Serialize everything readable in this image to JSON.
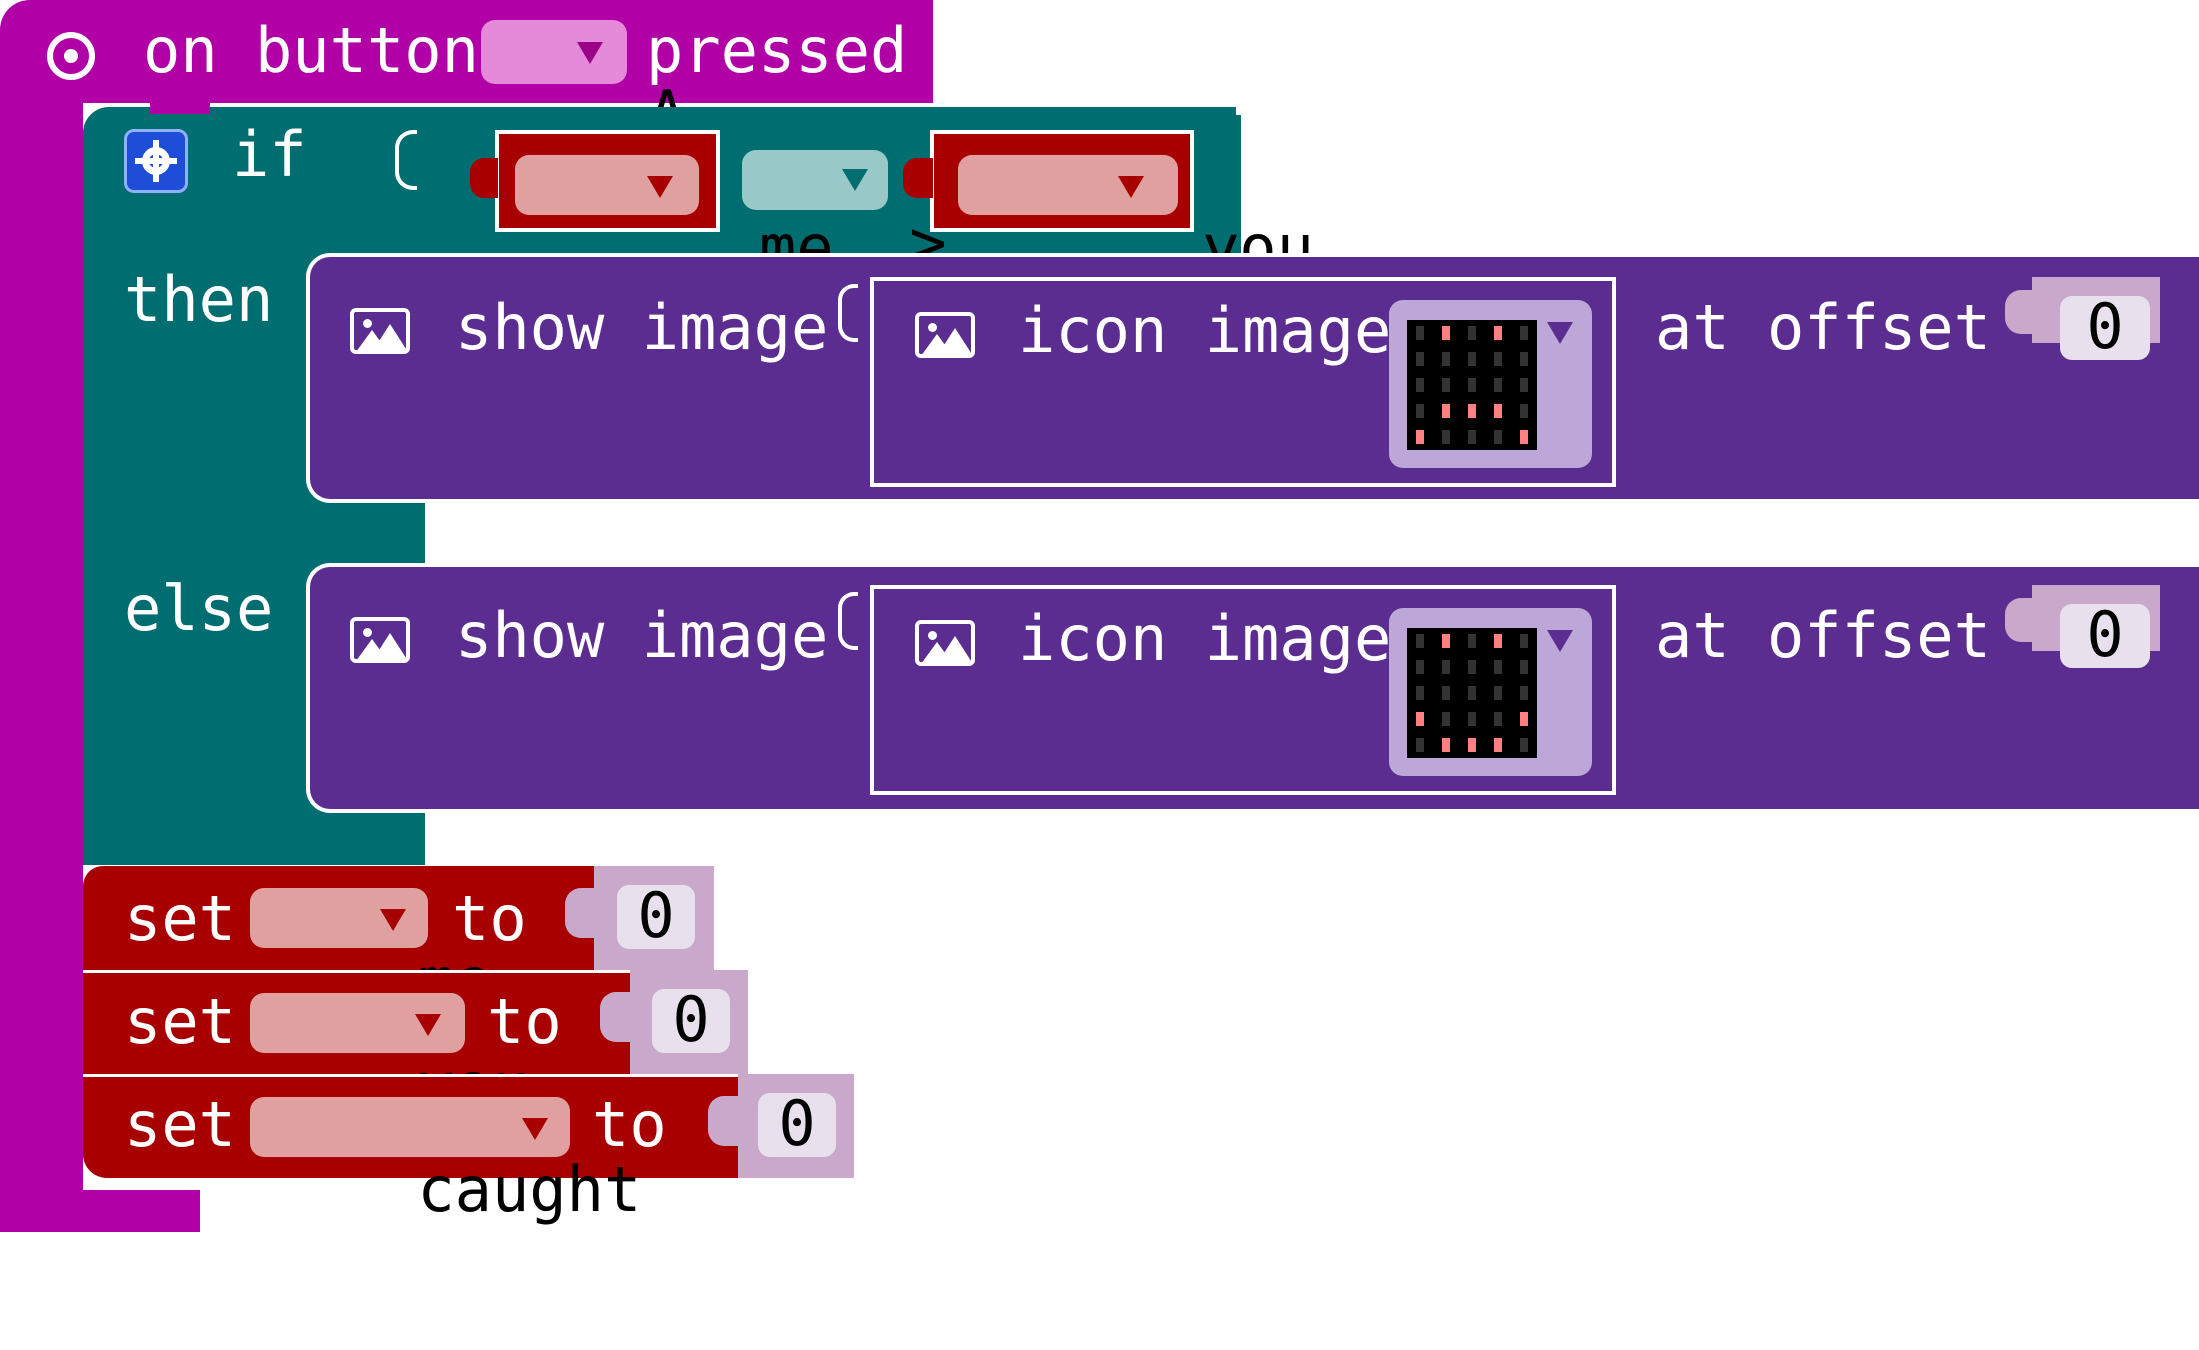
{
  "event": {
    "on_label": "on button",
    "button_value": "A",
    "pressed_label": "pressed",
    "icon": "target-icon"
  },
  "if_block": {
    "gear_icon": "gear-icon",
    "if_label": "if",
    "then_label": "then",
    "else_label": "else",
    "left_var": "me",
    "operator": ">",
    "right_var": "you"
  },
  "then_show": {
    "show_label": "show image",
    "icon_label": "icon image",
    "offset_label": "at offset",
    "offset_value": "0",
    "image_icon": "image-icon",
    "leds": [
      [
        0,
        1,
        0,
        1,
        0
      ],
      [
        0,
        0,
        0,
        0,
        0
      ],
      [
        0,
        0,
        0,
        0,
        0
      ],
      [
        0,
        1,
        1,
        1,
        0
      ],
      [
        1,
        0,
        0,
        0,
        1
      ]
    ]
  },
  "else_show": {
    "show_label": "show image",
    "icon_label": "icon image",
    "offset_label": "at offset",
    "offset_value": "0",
    "image_icon": "image-icon",
    "leds": [
      [
        0,
        1,
        0,
        1,
        0
      ],
      [
        0,
        0,
        0,
        0,
        0
      ],
      [
        0,
        0,
        0,
        0,
        0
      ],
      [
        1,
        0,
        0,
        0,
        1
      ],
      [
        0,
        1,
        1,
        1,
        0
      ]
    ]
  },
  "set_blocks": [
    {
      "set_label": "set",
      "variable": "me",
      "to_label": "to",
      "value": "0"
    },
    {
      "set_label": "set",
      "variable": "you",
      "to_label": "to",
      "value": "0"
    },
    {
      "set_label": "set",
      "variable": "caught",
      "to_label": "to",
      "value": "0"
    }
  ],
  "colors": {
    "event": "#b000a6",
    "logic": "#006e70",
    "images": "#5c2d91",
    "variables": "#a80000",
    "field_light": "#e0a0a0",
    "number_slot": "#c9a8cc",
    "led_on": "#ff8080"
  }
}
